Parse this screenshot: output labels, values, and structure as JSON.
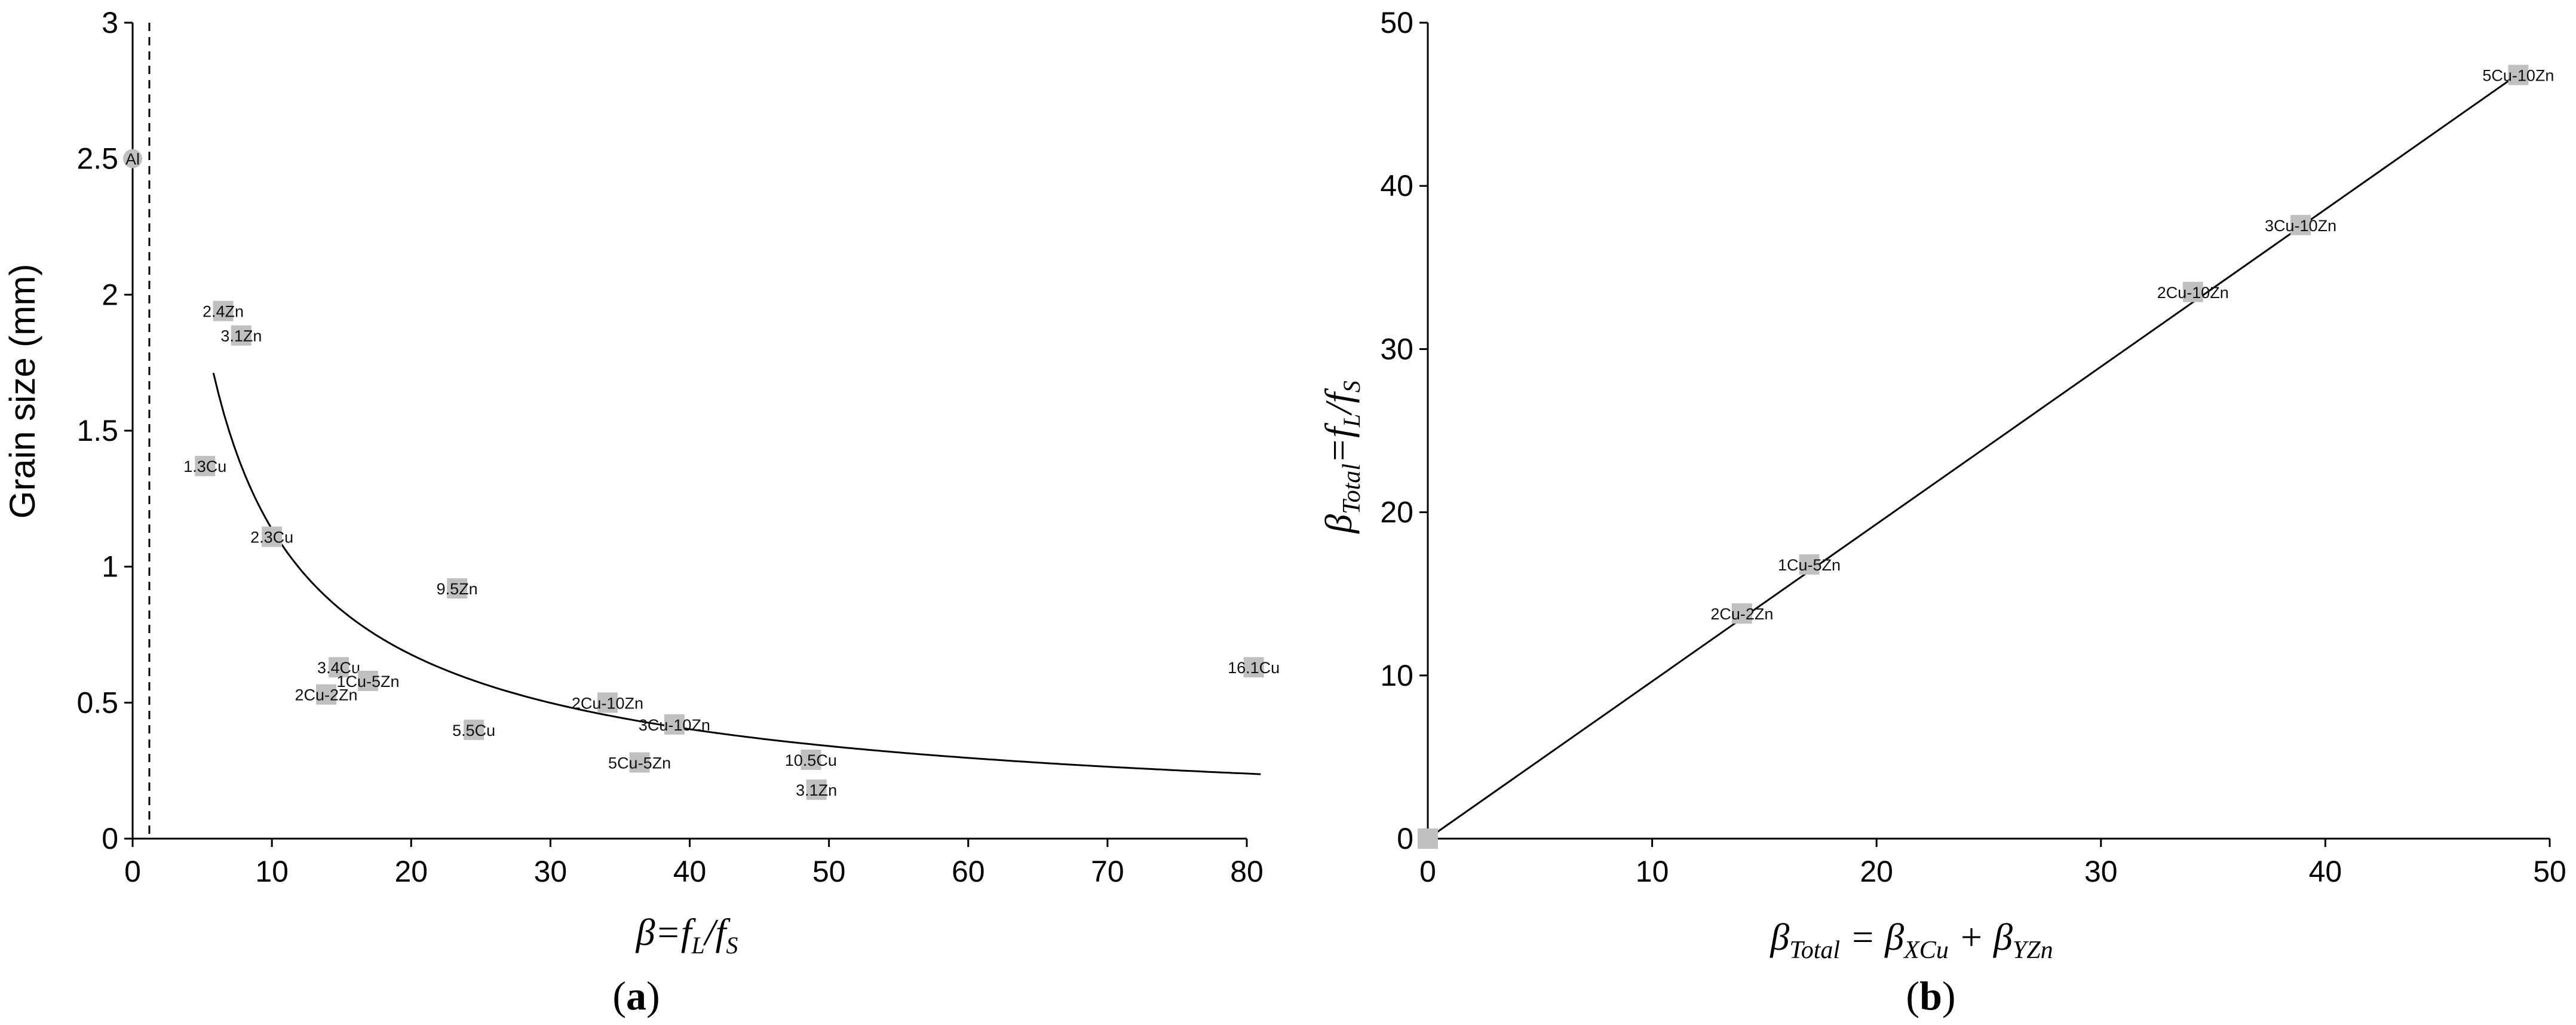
{
  "chart_data": [
    {
      "type": "scatter",
      "panel": "a",
      "caption": {
        "open": "(",
        "letter": "a",
        "close": ")"
      },
      "ylabel": "Grain size (mm)",
      "xlabel": {
        "base": "β=",
        "fL": "f",
        "fL_sub": "L",
        "slash": "/",
        "fS": "f",
        "fS_sub": "S"
      },
      "xlim": [
        0,
        80
      ],
      "ylim": [
        0,
        3
      ],
      "xticks": [
        0,
        10,
        20,
        30,
        40,
        50,
        60,
        70,
        80
      ],
      "yticks": [
        0,
        0.5,
        1,
        1.5,
        2,
        2.5,
        3
      ],
      "ytick_labels": [
        "0",
        "0.5",
        "1",
        "1.5",
        "2",
        "2.5",
        "3"
      ],
      "vline_dashed_x": 1.2,
      "points": [
        {
          "label": "Al",
          "x": 0,
          "y": 2.5,
          "marker": "circle"
        },
        {
          "label": "2.4Zn",
          "x": 6.5,
          "y": 1.94
        },
        {
          "label": "3.1Zn",
          "x": 7.8,
          "y": 1.85
        },
        {
          "label": "1.3Cu",
          "x": 5.2,
          "y": 1.37
        },
        {
          "label": "2.3Cu",
          "x": 10,
          "y": 1.11
        },
        {
          "label": "9.5Zn",
          "x": 23.3,
          "y": 0.92
        },
        {
          "label": "3.4Cu",
          "x": 14.8,
          "y": 0.63
        },
        {
          "label": "1Cu-5Zn",
          "x": 16.9,
          "y": 0.58
        },
        {
          "label": "2Cu-2Zn",
          "x": 13.9,
          "y": 0.53
        },
        {
          "label": "5.5Cu",
          "x": 24.5,
          "y": 0.4
        },
        {
          "label": "2Cu-10Zn",
          "x": 34.1,
          "y": 0.5
        },
        {
          "label": "3Cu-10Zn",
          "x": 38.9,
          "y": 0.42
        },
        {
          "label": "5Cu-5Zn",
          "x": 36.4,
          "y": 0.28
        },
        {
          "label": "10.5Cu",
          "x": 48.7,
          "y": 0.29
        },
        {
          "label": "3.1Zn",
          "x": 49.1,
          "y": 0.18
        },
        {
          "label": "16.1Cu",
          "x": 80.5,
          "y": 0.63
        }
      ],
      "fit_curve": {
        "form": "a/x^b",
        "a": 6.4,
        "b": 0.75,
        "x_range": [
          5.8,
          81
        ]
      }
    },
    {
      "type": "scatter",
      "panel": "b",
      "caption": {
        "open": "(",
        "letter": "b",
        "close": ")"
      },
      "ylabel": {
        "beta": "β",
        "sub": "Total",
        "eq": "=",
        "fL": "f",
        "fL_sub": "L",
        "slash": "/",
        "fS": "f",
        "fS_sub": "S"
      },
      "xlabel": {
        "beta": "β",
        "sub": "Total",
        "eq": " = ",
        "b2": "β",
        "sub2": "XCu",
        "plus": " + ",
        "b3": "β",
        "sub3": "YZn"
      },
      "xlim": [
        0,
        50
      ],
      "ylim": [
        0,
        50
      ],
      "xticks": [
        0,
        10,
        20,
        30,
        40,
        50
      ],
      "yticks": [
        0,
        10,
        20,
        30,
        40,
        50
      ],
      "points": [
        {
          "label": "",
          "x": 0,
          "y": 0
        },
        {
          "label": "2Cu-2Zn",
          "x": 14,
          "y": 13.8
        },
        {
          "label": "1Cu-5Zn",
          "x": 17,
          "y": 16.8
        },
        {
          "label": "2Cu-10Zn",
          "x": 34.1,
          "y": 33.5
        },
        {
          "label": "3Cu-10Zn",
          "x": 38.9,
          "y": 37.6
        },
        {
          "label": "5Cu-10Zn",
          "x": 48.6,
          "y": 46.8
        }
      ],
      "fit_line": {
        "slope": 0.964,
        "intercept": 0,
        "x_range": [
          0,
          48.6
        ]
      }
    }
  ],
  "colors": {
    "marker": "#c0c0c0",
    "axis": "#000000",
    "line": "#000000"
  }
}
